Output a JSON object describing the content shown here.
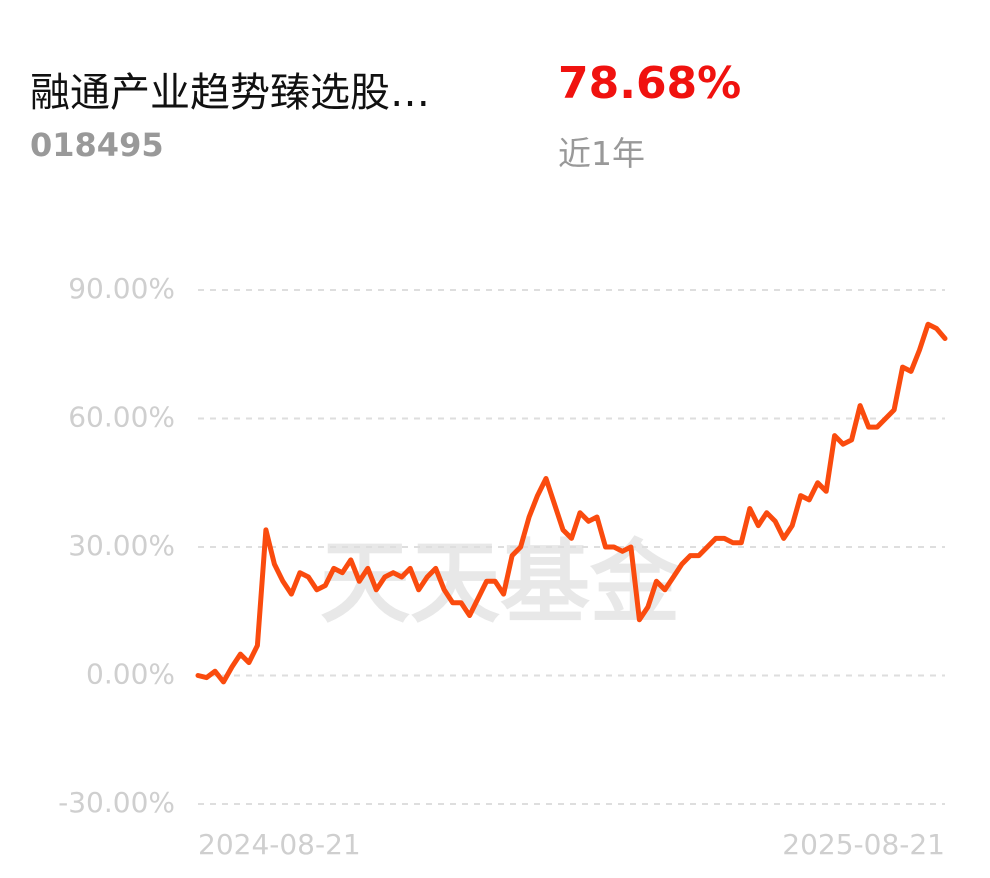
{
  "header": {
    "name": "融通产业趋势臻选股…",
    "code": "018495",
    "return": "78.68%",
    "period": "近1年"
  },
  "chart_data": {
    "type": "line",
    "watermark": "天天基金",
    "categories": [
      "2024-08-21",
      null,
      null,
      null,
      null,
      null,
      null,
      null,
      null,
      null,
      null,
      null,
      null,
      null,
      null,
      null,
      null,
      null,
      null,
      null,
      null,
      null,
      null,
      null,
      null,
      null,
      null,
      null,
      null,
      null,
      null,
      null,
      null,
      null,
      null,
      null,
      null,
      null,
      null,
      null,
      null,
      null,
      null,
      null,
      null,
      null,
      null,
      null,
      null,
      null,
      null,
      null,
      null,
      null,
      null,
      null,
      null,
      null,
      null,
      null,
      null,
      null,
      null,
      null,
      null,
      null,
      null,
      null,
      null,
      null,
      null,
      null,
      null,
      null,
      null,
      null,
      null,
      null,
      null,
      null,
      null,
      null,
      null,
      null,
      null,
      null,
      null,
      null,
      "2025-08-21"
    ],
    "series": [
      {
        "name": "融通产业趋势臻选股…",
        "color": "#fa4b0e",
        "values": [
          0,
          -0.5,
          1,
          -1.5,
          2,
          5,
          3,
          7,
          34,
          26,
          22,
          19,
          24,
          23,
          20,
          21,
          25,
          24,
          27,
          22,
          25,
          20,
          23,
          24,
          23,
          25,
          20,
          23,
          25,
          20,
          17,
          17,
          14,
          18,
          22,
          22,
          19,
          28,
          30,
          37,
          42,
          46,
          40,
          34,
          32,
          38,
          36,
          37,
          30,
          30,
          29,
          30,
          13,
          16,
          22,
          20,
          23,
          26,
          28,
          28,
          30,
          32,
          32,
          31,
          31,
          39,
          35,
          38,
          36,
          32,
          35,
          42,
          41,
          45,
          43,
          56,
          54,
          55,
          63,
          58,
          58,
          60,
          62,
          72,
          71,
          76,
          82,
          81,
          78.68
        ]
      }
    ],
    "ylim": [
      -30,
      90
    ],
    "yticks": [
      {
        "value": -30,
        "label": "-30.00%"
      },
      {
        "value": 0,
        "label": "0.00%"
      },
      {
        "value": 30,
        "label": "30.00%"
      },
      {
        "value": 60,
        "label": "60.00%"
      },
      {
        "value": 90,
        "label": "90.00%"
      }
    ],
    "grid": true
  }
}
